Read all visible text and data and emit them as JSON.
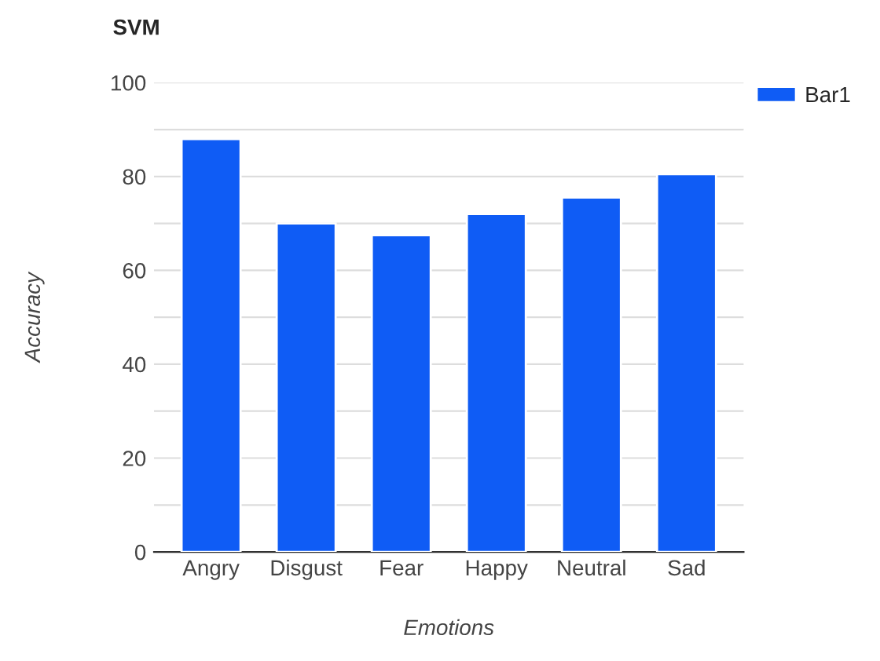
{
  "chart_data": {
    "type": "bar",
    "title": "SVM",
    "xlabel": "Emotions",
    "ylabel": "Accuracy",
    "categories": [
      "Angry",
      "Disgust",
      "Fear",
      "Happy",
      "Neutral",
      "Sad"
    ],
    "series": [
      {
        "name": "Bar1",
        "color": "#0f5cf5",
        "values": [
          88,
          70,
          67.5,
          72,
          75.5,
          80.5
        ]
      }
    ],
    "ylim": [
      0,
      100
    ],
    "yticks": [
      0,
      {
        "value": 10,
        "label": null
      },
      20,
      {
        "value": 30,
        "label": null
      },
      40,
      {
        "value": 50,
        "label": null
      },
      60,
      {
        "value": 70,
        "label": null
      },
      80,
      {
        "value": 90,
        "label": null
      },
      100
    ],
    "grid": "y",
    "legend": "top right"
  }
}
